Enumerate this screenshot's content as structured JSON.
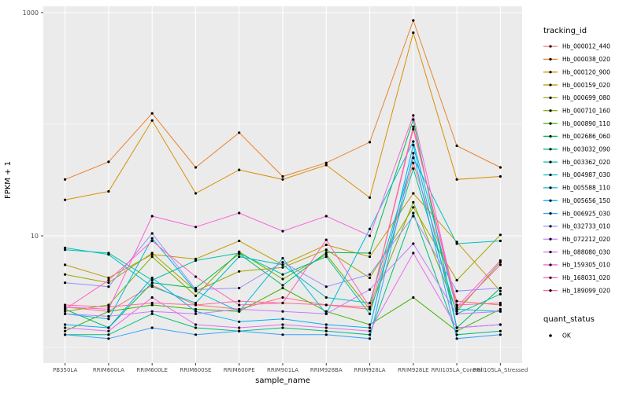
{
  "figure": {
    "background": "#FFFFFF"
  },
  "chart_data": {
    "type": "line",
    "title": "",
    "xlabel": "sample_name",
    "ylabel": "FPKM + 1",
    "y_scale": "log10",
    "ylim": [
      1,
      1000
    ],
    "grid": true,
    "legend_position": "right",
    "y_ticks": [
      {
        "value": 1000,
        "label": "1000"
      },
      {
        "value": 10,
        "label": "10"
      }
    ],
    "y_minor_gridlines": [
      100,
      1
    ],
    "categories": [
      "PB350LA",
      "RRIM600LA",
      "RRIM600LE",
      "RRIM600SE",
      "RRIM600PE",
      "RRIM901LA",
      "RRIM928BA",
      "RRIM928LA",
      "RRIM928LE",
      "RRII105LA_Control",
      "RRII105LA_Stressed"
    ],
    "series": [
      {
        "name": "Hb_000012_440",
        "color": "#F8766D",
        "values": [
          2.3,
          2.1,
          3.6,
          2.4,
          2.2,
          2.8,
          2.4,
          2.2,
          45,
          2.6,
          2.4
        ]
      },
      {
        "name": "Hb_000038_020",
        "color": "#EA8331",
        "values": [
          32,
          46,
          125,
          41,
          84,
          34,
          45,
          69,
          850,
          64,
          41
        ]
      },
      {
        "name": "Hb_000120_900",
        "color": "#D89000",
        "values": [
          21,
          25,
          108,
          24,
          39,
          32,
          43,
          22,
          660,
          32,
          34
        ]
      },
      {
        "name": "Hb_000159_020",
        "color": "#C09B00",
        "values": [
          5.5,
          4.2,
          6.8,
          6.2,
          9.0,
          5.5,
          8.3,
          6.5,
          24,
          8.8,
          3.2
        ]
      },
      {
        "name": "Hb_000699_080",
        "color": "#A3A500",
        "values": [
          4.5,
          3.8,
          7.0,
          3.2,
          4.8,
          5.2,
          7.5,
          4.2,
          18,
          4.0,
          10.2
        ]
      },
      {
        "name": "Hb_000710_160",
        "color": "#7CAE00",
        "values": [
          2.1,
          2.4,
          6.5,
          2.9,
          7.2,
          4.1,
          6.8,
          2.2,
          20,
          2.1,
          5.8
        ]
      },
      {
        "name": "Hb_000890_110",
        "color": "#39B600",
        "values": [
          1.4,
          2.1,
          2.4,
          2.2,
          2.1,
          3.4,
          2.1,
          1.6,
          2.8,
          1.4,
          2.2
        ]
      },
      {
        "name": "Hb_002686_060",
        "color": "#00BB4E",
        "values": [
          2.2,
          1.5,
          3.8,
          3.4,
          6.9,
          3.6,
          7.1,
          7.0,
          110,
          1.5,
          3.4
        ]
      },
      {
        "name": "Hb_003032_090",
        "color": "#00BF7D",
        "values": [
          1.3,
          1.3,
          2.0,
          1.5,
          1.4,
          1.5,
          1.4,
          1.3,
          16,
          1.3,
          1.4
        ]
      },
      {
        "name": "Hb_003362_020",
        "color": "#00C1A3",
        "values": [
          7.5,
          7.0,
          4.0,
          6.0,
          7.0,
          4.5,
          6.5,
          2.0,
          40,
          2.0,
          3.0
        ]
      },
      {
        "name": "Hb_004987_030",
        "color": "#00BFC4",
        "values": [
          7.8,
          6.8,
          3.5,
          2.5,
          6.5,
          5.5,
          2.8,
          2.5,
          50,
          8.5,
          9.0
        ]
      },
      {
        "name": "Hb_005588_110",
        "color": "#00BAE0",
        "values": [
          2.0,
          1.8,
          9.5,
          3.2,
          2.1,
          6.3,
          2.0,
          11.5,
          70,
          2.2,
          2.1
        ]
      },
      {
        "name": "Hb_005656_150",
        "color": "#00B0F6",
        "values": [
          1.6,
          1.5,
          4.2,
          2.1,
          1.7,
          1.8,
          1.6,
          1.5,
          65,
          1.5,
          1.6
        ]
      },
      {
        "name": "Hb_006925_030",
        "color": "#35A2FF",
        "values": [
          1.3,
          1.2,
          1.5,
          1.3,
          1.4,
          1.3,
          1.3,
          1.2,
          55,
          1.2,
          1.3
        ]
      },
      {
        "name": "Hb_032733_010",
        "color": "#9590FF",
        "values": [
          3.8,
          3.5,
          10.5,
          3.3,
          3.4,
          5.8,
          3.5,
          4.5,
          15,
          3.2,
          3.4
        ]
      },
      {
        "name": "Hb_072212_020",
        "color": "#C77CFF",
        "values": [
          2.0,
          1.9,
          2.1,
          2.0,
          2.2,
          2.1,
          2.0,
          3.3,
          8.5,
          2.0,
          2.1
        ]
      },
      {
        "name": "Hb_088080_030",
        "color": "#E76BF3",
        "values": [
          1.5,
          1.4,
          2.8,
          1.6,
          1.5,
          1.6,
          1.5,
          1.4,
          7.0,
          1.5,
          1.6
        ]
      },
      {
        "name": "Hb_159305_010",
        "color": "#FA62DB",
        "values": [
          2.3,
          2.2,
          15.0,
          12.0,
          16.0,
          11.0,
          15.0,
          10.0,
          120,
          2.3,
          6.0
        ]
      },
      {
        "name": "Hb_168031_020",
        "color": "#FF62BC",
        "values": [
          2.2,
          4.0,
          9.0,
          4.3,
          2.4,
          2.5,
          9.2,
          2.3,
          95,
          2.2,
          5.5
        ]
      },
      {
        "name": "Hb_189099_020",
        "color": "#FF6A98",
        "values": [
          2.4,
          2.3,
          2.5,
          2.4,
          2.6,
          2.5,
          2.4,
          2.3,
          90,
          2.4,
          2.5
        ]
      }
    ],
    "legend": {
      "color_title": "tracking_id",
      "shape_title": "quant_status",
      "shape_items": [
        {
          "label": "OK",
          "color": "#000000"
        }
      ]
    },
    "colors": {
      "panel_bg": "#EBEBEB",
      "grid": "#FFFFFF",
      "point": "#000000",
      "tick_text": "#4D4D4D",
      "tick_mark": "#333333"
    }
  }
}
